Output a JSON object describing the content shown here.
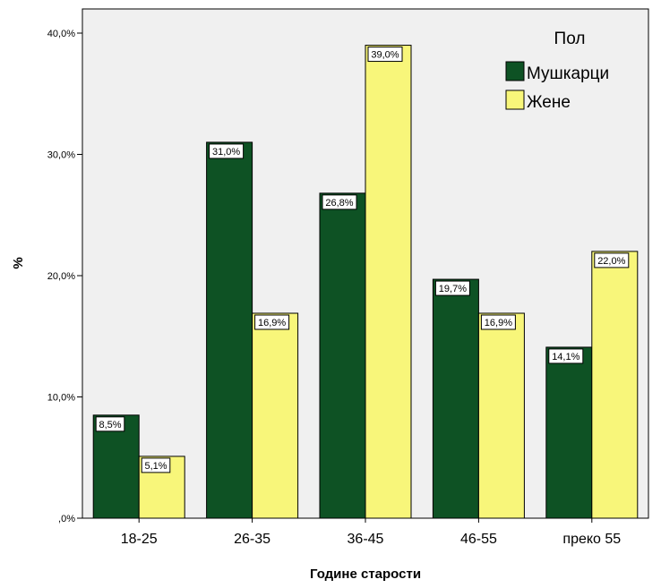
{
  "chart_data": {
    "type": "bar",
    "title": "",
    "xlabel": "Године старости",
    "ylabel": "%",
    "categories": [
      "18-25",
      "26-35",
      "36-45",
      "46-55",
      "преко 55"
    ],
    "series": [
      {
        "name": "Мушкарци",
        "values": [
          8.5,
          31.0,
          26.8,
          19.7,
          14.1
        ],
        "labels": [
          "8,5%",
          "31,0%",
          "26,8%",
          "19,7%",
          "14,1%"
        ],
        "color": "#0e5224"
      },
      {
        "name": "Жене",
        "values": [
          5.1,
          16.9,
          39.0,
          16.9,
          22.0
        ],
        "labels": [
          "5,1%",
          "16,9%",
          "39,0%",
          "16,9%",
          "22,0%"
        ],
        "color": "#f8f67a"
      }
    ],
    "ylim": [
      0,
      40
    ],
    "yticks": [
      0,
      10,
      20,
      30,
      40
    ],
    "ytick_labels": [
      ",0%",
      "10,0%",
      "20,0%",
      "30,0%",
      "40,0%"
    ],
    "legend": {
      "title": "Пол",
      "position": "top-right"
    },
    "grid": false,
    "plot_background": "#f0f0f0"
  }
}
